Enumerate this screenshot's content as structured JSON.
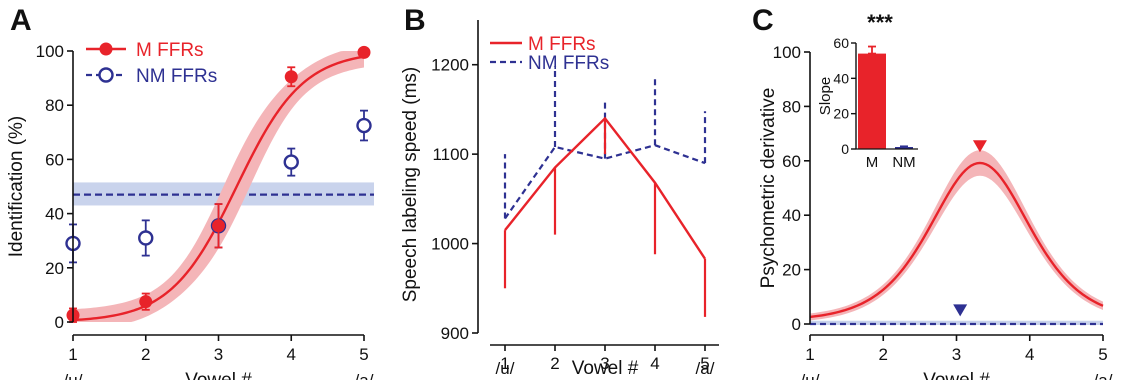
{
  "colors": {
    "m": "#e8232a",
    "nm": "#2e3192",
    "m_band": "#f4b5b8",
    "nm_band": "#c9d3ec",
    "axis": "#111111"
  },
  "chart_data": [
    {
      "panel_label": "A",
      "type": "scatter",
      "xlabel": "Vowel #",
      "ylabel": "Identification (%)",
      "xlim": [
        1,
        5
      ],
      "ylim": [
        0,
        100
      ],
      "xticks": [
        "1",
        "2",
        "3",
        "4",
        "5"
      ],
      "xtick_sub": {
        "start": "/u/",
        "end": "/a/"
      },
      "yticks": [
        "0",
        "20",
        "40",
        "60",
        "80",
        "100"
      ],
      "legend": [
        "M  FFRs",
        "NM  FFRs"
      ],
      "series": [
        {
          "name": "M  FFRs",
          "x": [
            1,
            2,
            3,
            4,
            5
          ],
          "y": [
            2.5,
            7.5,
            35.5,
            90.5,
            99.5
          ],
          "err": [
            2.5,
            3,
            8,
            3.5,
            1
          ],
          "fit": {
            "x0": 3.25,
            "k": 2.2,
            "band": 4
          }
        },
        {
          "name": "NM  FFRs",
          "x": [
            1,
            2,
            3,
            4,
            5
          ],
          "y": [
            29,
            31,
            35.5,
            59,
            72.5
          ],
          "err": [
            7,
            6.5,
            8,
            5,
            5.5
          ],
          "fit": {
            "constant": 47,
            "band_low": 43,
            "band_high": 51.5
          }
        }
      ]
    },
    {
      "panel_label": "B",
      "type": "line",
      "xlabel": "Vowel #",
      "ylabel": "Speech labeling speed (ms)",
      "xlim": [
        0.6,
        5.3
      ],
      "ylim": [
        900,
        1250
      ],
      "xticks": [
        "1",
        "2",
        "3",
        "4",
        "5"
      ],
      "xtick_sub": {
        "start": "/u/",
        "end": "/a/"
      },
      "yticks": [
        "900",
        "1000",
        "1100",
        "1200"
      ],
      "legend": [
        "M  FFRs",
        "NM  FFRs"
      ],
      "series": [
        {
          "name": "M  FFRs",
          "x": [
            1,
            2,
            3,
            4,
            5
          ],
          "y": [
            1015,
            1085,
            1140,
            1068,
            983
          ],
          "err": [
            65,
            75,
            40,
            80,
            65
          ]
        },
        {
          "name": "NM  FFRs",
          "x": [
            1,
            2,
            3,
            4,
            5
          ],
          "y": [
            1028,
            1108,
            1095,
            1110,
            1090
          ],
          "err": [
            72,
            90,
            65,
            78,
            58
          ]
        }
      ]
    },
    {
      "panel_label": "C",
      "type": "line",
      "xlabel": "Vowel #",
      "ylabel": "Psychometric derivative",
      "xlim": [
        1,
        5
      ],
      "ylim": [
        0,
        100
      ],
      "xticks": [
        "1",
        "2",
        "3",
        "4",
        "5"
      ],
      "xtick_sub": {
        "start": "/u/",
        "end": "/a/"
      },
      "yticks": [
        "0",
        "20",
        "40",
        "60",
        "80",
        "100"
      ],
      "series": [
        {
          "name": "M  FFRs",
          "peak_x": 3.32,
          "peak_y": 58,
          "marker": "triangle-down"
        },
        {
          "name": "NM  FFRs",
          "constant": 0,
          "marker_x": 3.05,
          "marker": "triangle-down"
        }
      ],
      "inset": {
        "type": "bar",
        "ylabel": "Slope",
        "categories": [
          "M",
          "NM"
        ],
        "values": [
          54,
          0.5
        ],
        "err": [
          4,
          1
        ],
        "ylim": [
          0,
          60
        ],
        "yticks": [
          "0",
          "20",
          "40",
          "60"
        ],
        "annotation": "***"
      }
    }
  ]
}
